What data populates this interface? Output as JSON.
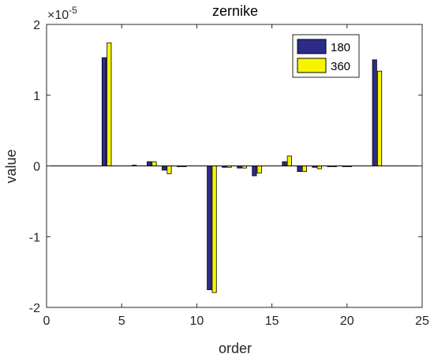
{
  "chart_data": {
    "type": "bar",
    "title": "zernike",
    "xlabel": "order",
    "ylabel": "value",
    "y_exponent_label": "×10",
    "y_exponent_power": "-5",
    "xlim": [
      0,
      25
    ],
    "ylim": [
      -2,
      2
    ],
    "y_scale_factor": 1e-05,
    "x_ticks": [
      0,
      5,
      10,
      15,
      20,
      25
    ],
    "x_tick_labels": [
      "0",
      "5",
      "10",
      "15",
      "20",
      "25"
    ],
    "y_ticks": [
      -2,
      -1,
      0,
      1,
      2
    ],
    "y_tick_labels": [
      "-2",
      "-1",
      "0",
      "1",
      "2"
    ],
    "grid": false,
    "legend_position": "top-right",
    "x": [
      1,
      2,
      3,
      4,
      5,
      6,
      7,
      8,
      9,
      10,
      11,
      12,
      13,
      14,
      15,
      16,
      17,
      18,
      19,
      20,
      21,
      22
    ],
    "series": [
      {
        "name": "180",
        "color": "#2e2a8a",
        "values": [
          0,
          0,
          0,
          1.53,
          0,
          0.01,
          0.06,
          -0.06,
          -0.01,
          0,
          -1.75,
          -0.02,
          -0.03,
          -0.14,
          0,
          0.06,
          -0.08,
          -0.02,
          -0.01,
          -0.01,
          0,
          1.5
        ]
      },
      {
        "name": "360",
        "color": "#f5f500",
        "values": [
          0,
          0,
          0,
          1.74,
          0,
          0,
          0.06,
          -0.11,
          -0.01,
          0,
          -1.79,
          -0.02,
          -0.03,
          -0.1,
          0,
          0.14,
          -0.08,
          -0.04,
          -0.01,
          -0.01,
          0,
          1.34
        ]
      }
    ]
  }
}
